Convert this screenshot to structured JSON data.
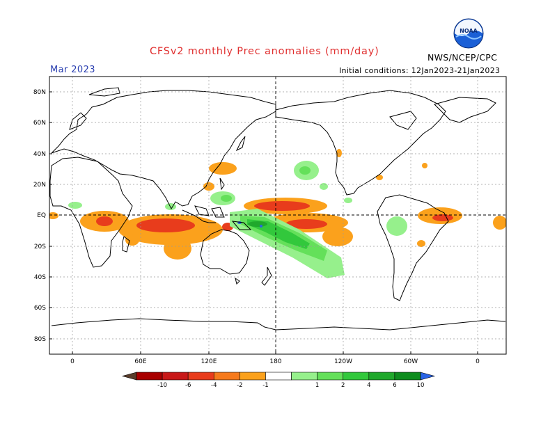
{
  "header": {
    "title": "CFSv2 monthly Prec anomalies (mm/day)",
    "month": "Mar 2023",
    "initial_conditions": "Initial conditions: 12Jan2023-21Jan2023",
    "agency": "NWS/NCEP/CPC",
    "logo_text": "NOAA"
  },
  "map": {
    "lat_labels": [
      "80N",
      "60N",
      "40N",
      "20N",
      "EQ",
      "20S",
      "40S",
      "60S",
      "80S"
    ],
    "lon_labels": [
      "0",
      "60E",
      "120E",
      "180",
      "120W",
      "60W",
      "0"
    ]
  },
  "colorbar": {
    "labels": [
      "-10",
      "-6",
      "-4",
      "-2",
      "-1",
      "1",
      "2",
      "4",
      "6",
      "10"
    ],
    "colors": [
      "#5a3d2b",
      "#a80000",
      "#c81818",
      "#e83c1c",
      "#f67a1c",
      "#fba11c",
      "#ffffff",
      "#96f08c",
      "#64e05a",
      "#32c83c",
      "#20a82c",
      "#0e8c1e",
      "#2a64e6"
    ]
  }
}
